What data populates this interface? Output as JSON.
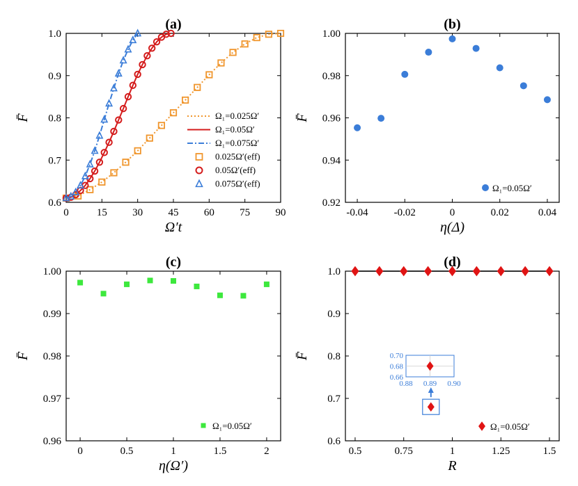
{
  "chart_data": [
    {
      "type": "line",
      "title": "(a)",
      "xlabel": "Ω′t",
      "ylabel": "F̄",
      "xlim": [
        0,
        90
      ],
      "ylim": [
        0.6,
        1.0
      ],
      "xticks": [
        "0",
        "15",
        "30",
        "45",
        "60",
        "75",
        "90"
      ],
      "yticks": [
        "0.6",
        "0.7",
        "0.8",
        "0.9",
        "1.0"
      ],
      "series": [
        {
          "name": "Ω₁=0.025Ω′",
          "style": "dotted",
          "color": "#f0962d",
          "x": [
            0,
            5,
            10,
            15,
            20,
            25,
            30,
            35,
            40,
            45,
            50,
            55,
            60,
            65,
            70,
            75,
            80,
            85,
            90
          ],
          "y": [
            0.61,
            0.615,
            0.63,
            0.648,
            0.67,
            0.695,
            0.722,
            0.752,
            0.782,
            0.812,
            0.842,
            0.872,
            0.902,
            0.93,
            0.955,
            0.975,
            0.99,
            0.998,
            1.0
          ]
        },
        {
          "name": "Ω₁=0.05Ω′",
          "style": "solid",
          "color": "#d41c1c",
          "x": [
            0,
            2,
            4,
            6,
            8,
            10,
            12,
            14,
            16,
            18,
            20,
            22,
            24,
            26,
            28,
            30,
            32,
            34,
            36,
            38,
            40,
            42,
            44
          ],
          "y": [
            0.61,
            0.612,
            0.618,
            0.628,
            0.64,
            0.656,
            0.674,
            0.695,
            0.718,
            0.742,
            0.768,
            0.795,
            0.822,
            0.85,
            0.877,
            0.903,
            0.926,
            0.947,
            0.965,
            0.98,
            0.991,
            0.998,
            1.0
          ]
        },
        {
          "name": "Ω₁=0.075Ω′",
          "style": "dashdot",
          "color": "#3b7dd8",
          "x": [
            0,
            2,
            4,
            6,
            8,
            10,
            12,
            14,
            16,
            18,
            20,
            22,
            24,
            26,
            28,
            30
          ],
          "y": [
            0.61,
            0.614,
            0.624,
            0.64,
            0.662,
            0.69,
            0.722,
            0.758,
            0.796,
            0.834,
            0.87,
            0.905,
            0.936,
            0.962,
            0.984,
            1.0
          ]
        },
        {
          "name": "0.025Ω′(eff)",
          "marker": "square",
          "color": "#f0962d",
          "x": [
            0,
            5,
            10,
            15,
            20,
            25,
            30,
            35,
            40,
            45,
            50,
            55,
            60,
            65,
            70,
            75,
            80,
            85,
            90
          ],
          "y": [
            0.61,
            0.615,
            0.63,
            0.648,
            0.67,
            0.695,
            0.722,
            0.752,
            0.782,
            0.812,
            0.842,
            0.872,
            0.902,
            0.93,
            0.955,
            0.975,
            0.99,
            0.998,
            1.0
          ]
        },
        {
          "name": "0.05Ω′(eff)",
          "marker": "circle",
          "color": "#d41c1c",
          "x": [
            0,
            2,
            4,
            6,
            8,
            10,
            12,
            14,
            16,
            18,
            20,
            22,
            24,
            26,
            28,
            30,
            32,
            34,
            36,
            38,
            40,
            42,
            44
          ],
          "y": [
            0.61,
            0.612,
            0.618,
            0.628,
            0.64,
            0.656,
            0.674,
            0.695,
            0.718,
            0.742,
            0.768,
            0.795,
            0.822,
            0.85,
            0.877,
            0.903,
            0.926,
            0.947,
            0.965,
            0.98,
            0.991,
            0.998,
            1.0
          ]
        },
        {
          "name": "0.075Ω′(eff)",
          "marker": "triangle",
          "color": "#3b7dd8",
          "x": [
            0,
            2,
            4,
            6,
            8,
            10,
            12,
            14,
            16,
            18,
            20,
            22,
            24,
            26,
            28,
            30
          ],
          "y": [
            0.61,
            0.614,
            0.624,
            0.64,
            0.662,
            0.69,
            0.722,
            0.758,
            0.796,
            0.834,
            0.87,
            0.905,
            0.936,
            0.962,
            0.984,
            1.0
          ]
        }
      ]
    },
    {
      "type": "scatter",
      "title": "(b)",
      "xlabel": "η(Δ)",
      "ylabel": "F̄",
      "xlim": [
        -0.045,
        0.045
      ],
      "ylim": [
        0.92,
        1.0
      ],
      "xticks": [
        "-0.04",
        "-0.02",
        "0",
        "0.02",
        "0.04"
      ],
      "yticks": [
        "0.92",
        "0.94",
        "0.96",
        "0.98",
        "1.00"
      ],
      "series": [
        {
          "name": "Ω₁=0.05Ω′",
          "marker": "circle",
          "color": "#3b7dd8",
          "x": [
            -0.04,
            -0.03,
            -0.02,
            -0.01,
            0,
            0.01,
            0.02,
            0.03,
            0.04
          ],
          "y": [
            0.9553,
            0.9598,
            0.9806,
            0.9911,
            0.9974,
            0.9929,
            0.9837,
            0.9752,
            0.9686
          ]
        }
      ]
    },
    {
      "type": "scatter",
      "title": "(c)",
      "xlabel": "η(Ω′)",
      "ylabel": "F̄",
      "xlim": [
        -0.15,
        2.15
      ],
      "ylim": [
        0.96,
        1.0
      ],
      "xticks": [
        "0",
        "0.5",
        "1",
        "1.5",
        "2"
      ],
      "yticks": [
        "0.96",
        "0.97",
        "0.98",
        "0.99",
        "1.00"
      ],
      "series": [
        {
          "name": "Ω₁=0.05Ω′",
          "marker": "square",
          "color": "#3de83d",
          "x": [
            0,
            0.25,
            0.5,
            0.75,
            1,
            1.25,
            1.5,
            1.75,
            2
          ],
          "y": [
            0.9973,
            0.9947,
            0.9969,
            0.9978,
            0.9977,
            0.9964,
            0.9943,
            0.9942,
            0.9969
          ]
        }
      ]
    },
    {
      "type": "scatter",
      "title": "(d)",
      "xlabel": "R",
      "ylabel": "F̄",
      "xlim": [
        0.45,
        1.55
      ],
      "ylim": [
        0.6,
        1.0
      ],
      "xticks": [
        "0.5",
        "0.75",
        "1",
        "1.25",
        "1.5"
      ],
      "yticks": [
        "0.6",
        "0.7",
        "0.8",
        "0.9",
        "1.0"
      ],
      "series": [
        {
          "name": "Ω₁=0.05Ω′",
          "marker": "diamond",
          "color": "#e01414",
          "x": [
            0.5,
            0.625,
            0.75,
            0.875,
            1.0,
            1.125,
            1.25,
            1.375,
            1.5
          ],
          "y": [
            1.0,
            1.0,
            1.0,
            1.0,
            1.0,
            1.0,
            1.0,
            1.0,
            1.0
          ]
        }
      ],
      "inset": {
        "xlim": [
          0.88,
          0.9
        ],
        "ylim": [
          0.66,
          0.7
        ],
        "xticks": [
          "0.88",
          "0.89",
          "0.90"
        ],
        "yticks": [
          "0.70",
          "0.68",
          "0.66"
        ],
        "point": {
          "x": 0.89,
          "y": 0.68
        },
        "color": "#3b7dd8"
      }
    }
  ]
}
